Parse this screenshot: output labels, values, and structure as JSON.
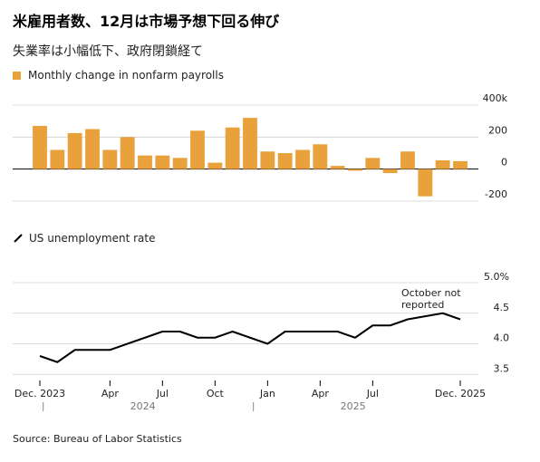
{
  "title": "米雇用者数、12月は市場予想下回る伸び",
  "subtitle": "失業率は小幅低下、政府閉鎖経て",
  "source": "Source: Bureau of Labor Statistics",
  "chart_data": [
    {
      "type": "bar",
      "legend": "Monthly change in nonfarm payrolls",
      "color": "#e9a23b",
      "y_ticks": [
        "400k",
        "200",
        "0",
        "-200"
      ],
      "y_tick_values": [
        400,
        200,
        0,
        -200
      ],
      "ylim": [
        -200,
        400
      ],
      "x": [
        "2023-12",
        "2024-01",
        "2024-02",
        "2024-03",
        "2024-04",
        "2024-05",
        "2024-06",
        "2024-07",
        "2024-08",
        "2024-09",
        "2024-10",
        "2024-11",
        "2024-12",
        "2025-01",
        "2025-02",
        "2025-03",
        "2025-04",
        "2025-05",
        "2025-06",
        "2025-07",
        "2025-08",
        "2025-09",
        "2025-10",
        "2025-11",
        "2025-12"
      ],
      "values": [
        270,
        120,
        225,
        250,
        120,
        200,
        85,
        85,
        70,
        240,
        40,
        260,
        320,
        110,
        100,
        120,
        155,
        20,
        -10,
        70,
        -25,
        110,
        -170,
        55,
        50
      ]
    },
    {
      "type": "line",
      "legend": "US unemployment rate",
      "color": "#000000",
      "y_ticks": [
        "5.0%",
        "4.5",
        "4.0",
        "3.5"
      ],
      "y_tick_values": [
        5.0,
        4.5,
        4.0,
        3.5
      ],
      "ylim": [
        3.4,
        5.0
      ],
      "x": [
        "2023-12",
        "2024-01",
        "2024-02",
        "2024-03",
        "2024-04",
        "2024-05",
        "2024-06",
        "2024-07",
        "2024-08",
        "2024-09",
        "2024-10",
        "2024-11",
        "2024-12",
        "2025-01",
        "2025-02",
        "2025-03",
        "2025-04",
        "2025-05",
        "2025-06",
        "2025-07",
        "2025-08",
        "2025-09",
        "2025-10",
        "2025-11",
        "2025-12"
      ],
      "values": [
        3.8,
        3.7,
        3.9,
        3.9,
        3.9,
        4.0,
        4.1,
        4.2,
        4.2,
        4.1,
        4.1,
        4.2,
        4.1,
        4.0,
        4.2,
        4.2,
        4.2,
        4.2,
        4.1,
        4.3,
        4.3,
        4.4,
        null,
        4.5,
        4.4
      ],
      "annotation": "October not reported"
    }
  ],
  "x_axis": {
    "tick_labels": [
      "Dec. 2023",
      "Apr",
      "Jul",
      "Oct",
      "Jan",
      "Apr",
      "Jul",
      "Dec. 2025"
    ],
    "tick_indices": [
      0,
      4,
      7,
      10,
      13,
      16,
      19,
      24
    ],
    "years": [
      "2024",
      "2025"
    ],
    "year_start_indices": [
      1,
      13
    ]
  }
}
